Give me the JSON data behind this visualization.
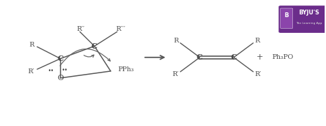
{
  "bg_color": "#ffffff",
  "text_color": "#444444",
  "line_color": "#555555",
  "arrow_color": "#555555",
  "curve_color": "#666666",
  "R2_label": "R′′",
  "R3_label": "R′′′",
  "logo_color": "#6b2d8b",
  "logo_text": "BYJU’S",
  "logo_sub": "The Learning App"
}
